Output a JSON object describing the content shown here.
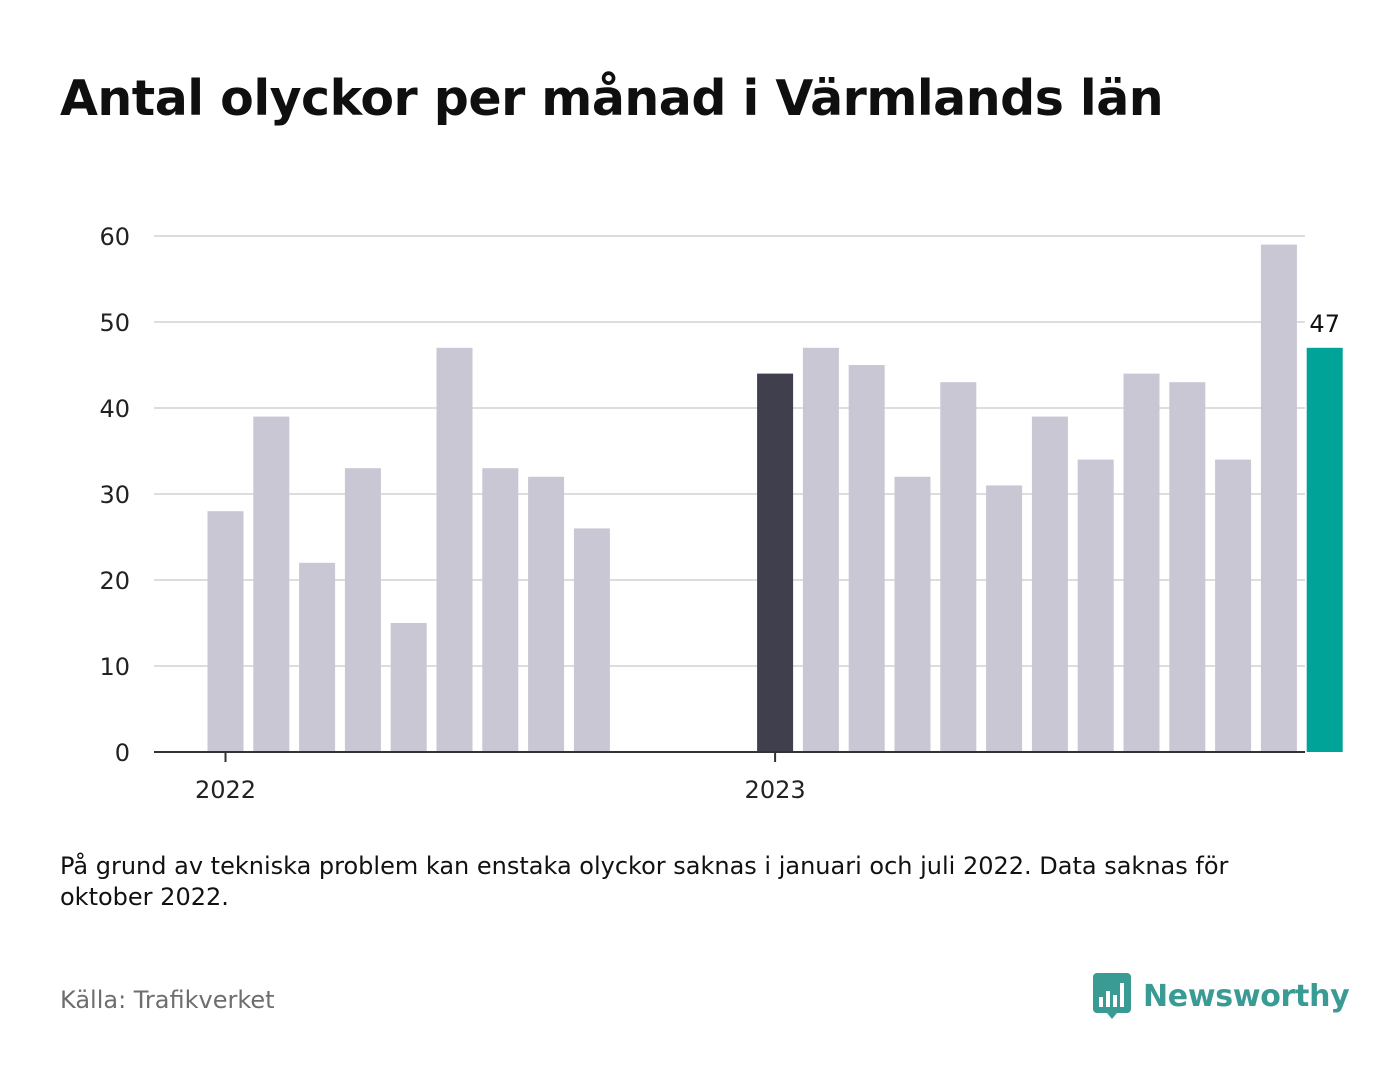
{
  "title": "Antal olyckor per månad i Värmlands län",
  "note": "På grund av tekniska problem kan enstaka olyckor saknas i januari och juli 2022. Data saknas för oktober 2022.",
  "source": "Källa: Trafikverket",
  "brand": {
    "name": "Newsworthy",
    "icon": "bar-chart-speech-bubble-icon",
    "color": "#3a9b94"
  },
  "colors": {
    "default_bar": "#c8c7d3",
    "highlight_year_start": "#403f4d",
    "highlight_latest": "#00a398",
    "grid": "#dddddd",
    "axis": "#333333"
  },
  "chart_data": {
    "type": "bar",
    "xlabel": "",
    "ylabel": "",
    "ylim": [
      0,
      60
    ],
    "yticks": [
      0,
      10,
      20,
      30,
      40,
      50,
      60
    ],
    "grid": true,
    "x_tick_labels": [
      {
        "label": "2022",
        "month": "2022-01"
      },
      {
        "label": "2023",
        "month": "2023-01"
      }
    ],
    "categories": [
      "2022-01",
      "2022-02",
      "2022-03",
      "2022-04",
      "2022-05",
      "2022-06",
      "2022-07",
      "2022-08",
      "2022-09",
      "2022-10",
      "2022-11",
      "2022-12",
      "2023-01",
      "2023-02",
      "2023-03",
      "2023-04",
      "2023-05",
      "2023-06",
      "2023-07",
      "2023-08",
      "2023-09",
      "2023-10",
      "2023-11",
      "2023-12",
      "2024-01"
    ],
    "values": [
      28,
      39,
      22,
      33,
      15,
      47,
      33,
      32,
      26,
      null,
      null,
      null,
      44,
      47,
      45,
      32,
      43,
      31,
      39,
      34,
      44,
      43,
      34,
      59,
      47
    ],
    "highlights": {
      "2023-01": "highlight_year_start",
      "2024-01": "highlight_latest"
    },
    "value_labels": [
      {
        "month": "2024-01",
        "text": "47"
      }
    ]
  }
}
